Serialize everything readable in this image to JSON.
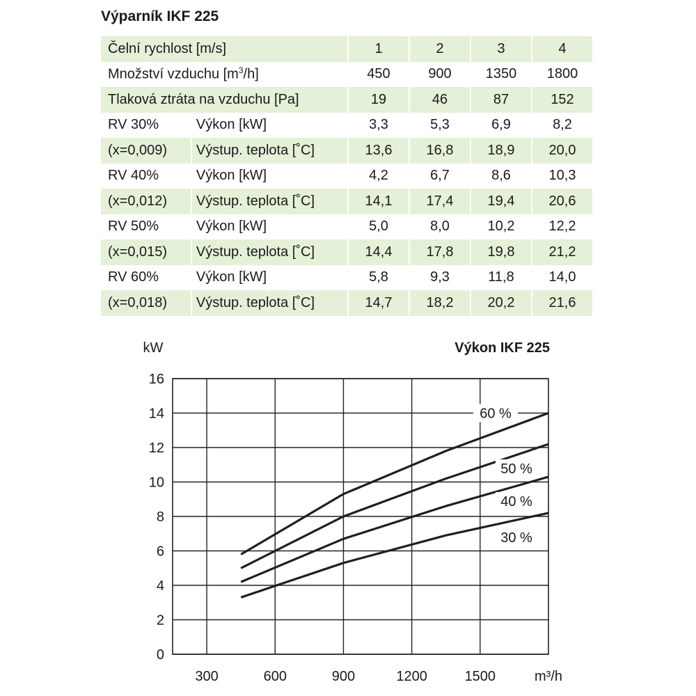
{
  "table": {
    "title": "Výparník IKF 225",
    "header": {
      "label": "Čelní rychlost [m/s]",
      "values": [
        "1",
        "2",
        "3",
        "4"
      ]
    },
    "airflow": {
      "label_pre": "Množství vzduchu [m",
      "label_sup": "3",
      "label_post": "/h]",
      "values": [
        "450",
        "900",
        "1350",
        "1800"
      ]
    },
    "pressure": {
      "label": "Tlaková ztráta na vzduchu [Pa]",
      "values": [
        "19",
        "46",
        "87",
        "152"
      ]
    },
    "groups": [
      {
        "rv": "RV 30%",
        "x": "(x=0,009)",
        "power_label": "Výkon [kW]",
        "power": [
          "3,3",
          "5,3",
          "6,9",
          "8,2"
        ],
        "temp_label": "Výstup. teplota [˚C]",
        "temp": [
          "13,6",
          "16,8",
          "18,9",
          "20,0"
        ]
      },
      {
        "rv": "RV 40%",
        "x": "(x=0,012)",
        "power_label": "Výkon [kW]",
        "power": [
          "4,2",
          "6,7",
          "8,6",
          "10,3"
        ],
        "temp_label": "Výstup. teplota [˚C]",
        "temp": [
          "14,1",
          "17,4",
          "19,4",
          "20,6"
        ]
      },
      {
        "rv": "RV 50%",
        "x": "(x=0,015)",
        "power_label": "Výkon [kW]",
        "power": [
          "5,0",
          "8,0",
          "10,2",
          "12,2"
        ],
        "temp_label": "Výstup. teplota [˚C]",
        "temp": [
          "14,4",
          "17,8",
          "19,8",
          "21,2"
        ]
      },
      {
        "rv": "RV 60%",
        "x": "(x=0,018)",
        "power_label": "Výkon [kW]",
        "power": [
          "5,8",
          "9,3",
          "11,8",
          "14,0"
        ],
        "temp_label": "Výstup. teplota [˚C]",
        "temp": [
          "14,7",
          "18,2",
          "20,2",
          "21,6"
        ]
      }
    ]
  },
  "chart_data": {
    "type": "line",
    "title": "Výkon IKF 225",
    "ylabel": "kW",
    "xlabel": "m³/h",
    "xlim": [
      150,
      1800
    ],
    "ylim": [
      0,
      16
    ],
    "x_ticks": [
      300,
      600,
      900,
      1200,
      1500
    ],
    "y_ticks": [
      0,
      2,
      4,
      6,
      8,
      10,
      12,
      14,
      16
    ],
    "grid": true,
    "series": [
      {
        "name": "30 %",
        "x": [
          450,
          900,
          1350,
          1800
        ],
        "values": [
          3.3,
          5.3,
          6.9,
          8.2
        ]
      },
      {
        "name": "40 %",
        "x": [
          450,
          900,
          1350,
          1800
        ],
        "values": [
          4.2,
          6.7,
          8.6,
          10.3
        ]
      },
      {
        "name": "50 %",
        "x": [
          450,
          900,
          1350,
          1800
        ],
        "values": [
          5.0,
          8.0,
          10.2,
          12.2
        ]
      },
      {
        "name": "60 %",
        "x": [
          450,
          900,
          1350,
          1800
        ],
        "values": [
          5.8,
          9.3,
          11.8,
          14.0
        ]
      }
    ]
  }
}
